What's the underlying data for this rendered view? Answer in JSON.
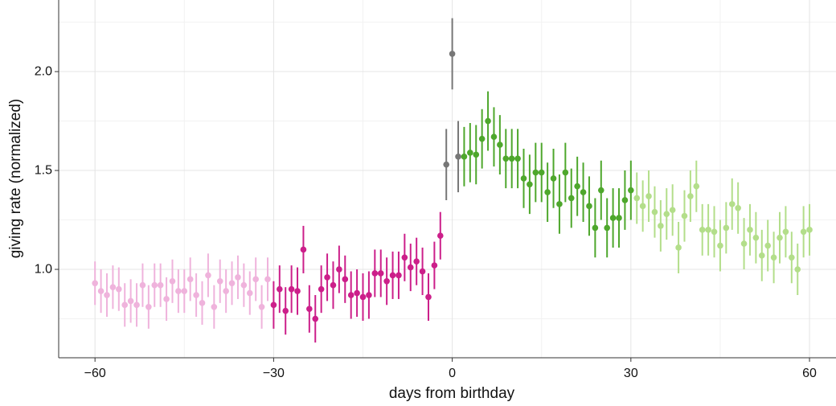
{
  "chart_data": {
    "type": "scatter",
    "xlabel": "days from birthday",
    "ylabel": "giving rate (normalized)",
    "xlim": [
      -66.1,
      64.45
    ],
    "ylim": [
      0.553,
      2.362
    ],
    "xticks": [
      {
        "value": -60,
        "label": "−60"
      },
      {
        "value": -30,
        "label": "−30"
      },
      0,
      30,
      60
    ],
    "yticks": [
      {
        "value": 1,
        "label": "1.0"
      },
      1.5,
      {
        "value": 2,
        "label": "2.0"
      }
    ],
    "x_minor_ticks": [
      -45,
      -15,
      15,
      45
    ],
    "y_minor_ticks": [
      0.75,
      1.25,
      1.75,
      2.25
    ],
    "grid": true,
    "series": [
      {
        "color": "#efb3dc",
        "error": 0.11,
        "x": [
          -60,
          -59,
          -58,
          -57,
          -56,
          -55,
          -54,
          -53,
          -52,
          -51,
          -50,
          -49,
          -48,
          -47,
          -46,
          -45,
          -44,
          -43,
          -42,
          -41,
          -40,
          -39,
          -38,
          -37,
          -36,
          -35,
          -34,
          -33,
          -32,
          -31
        ],
        "values": [
          0.93,
          0.89,
          0.87,
          0.91,
          0.9,
          0.82,
          0.84,
          0.82,
          0.92,
          0.81,
          0.92,
          0.92,
          0.85,
          0.94,
          0.89,
          0.89,
          0.95,
          0.87,
          0.83,
          0.97,
          0.81,
          0.94,
          0.89,
          0.93,
          0.96,
          0.92,
          0.88,
          0.95,
          0.81,
          0.95
        ]
      },
      {
        "color": "#cc1f8a",
        "error": 0.12,
        "x": [
          -30,
          -29,
          -28,
          -27,
          -26,
          -25,
          -24,
          -23,
          -22,
          -21,
          -20,
          -19,
          -18,
          -17,
          -16,
          -15,
          -14,
          -13,
          -12,
          -11,
          -10,
          -9,
          -8,
          -7,
          -6,
          -5,
          -4,
          -3,
          -2
        ],
        "values": [
          0.82,
          0.9,
          0.79,
          0.9,
          0.89,
          1.1,
          0.8,
          0.75,
          0.9,
          0.96,
          0.92,
          1.0,
          0.95,
          0.87,
          0.88,
          0.86,
          0.87,
          0.98,
          0.98,
          0.94,
          0.97,
          0.97,
          1.06,
          1.01,
          1.04,
          0.99,
          0.86,
          1.02,
          1.17
        ]
      },
      {
        "color": "#777777",
        "error": 0.18,
        "x": [
          -1,
          0,
          1
        ],
        "values": [
          1.53,
          2.09,
          1.57
        ]
      },
      {
        "color": "#4ea72c",
        "error": 0.15,
        "x": [
          2,
          3,
          4,
          5,
          6,
          7,
          8,
          9,
          10,
          11,
          12,
          13,
          14,
          15,
          16,
          17,
          18,
          19,
          20,
          21,
          22,
          23,
          24,
          25,
          26,
          27,
          28,
          29,
          30
        ],
        "values": [
          1.57,
          1.59,
          1.58,
          1.66,
          1.75,
          1.67,
          1.63,
          1.56,
          1.56,
          1.56,
          1.46,
          1.43,
          1.49,
          1.49,
          1.39,
          1.46,
          1.33,
          1.49,
          1.36,
          1.42,
          1.39,
          1.32,
          1.21,
          1.4,
          1.21,
          1.26,
          1.26,
          1.35,
          1.4
        ]
      },
      {
        "color": "#b3de8a",
        "error": 0.13,
        "x": [
          31,
          32,
          33,
          34,
          35,
          36,
          37,
          38,
          39,
          40,
          41,
          42,
          43,
          44,
          45,
          46,
          47,
          48,
          49,
          50,
          51,
          52,
          53,
          54,
          55,
          56,
          57,
          58,
          59,
          60
        ],
        "values": [
          1.36,
          1.32,
          1.37,
          1.29,
          1.22,
          1.28,
          1.3,
          1.11,
          1.27,
          1.37,
          1.42,
          1.2,
          1.2,
          1.19,
          1.12,
          1.21,
          1.33,
          1.31,
          1.13,
          1.2,
          1.16,
          1.07,
          1.12,
          1.06,
          1.16,
          1.19,
          1.06,
          1.0,
          1.19,
          1.2
        ]
      }
    ]
  }
}
